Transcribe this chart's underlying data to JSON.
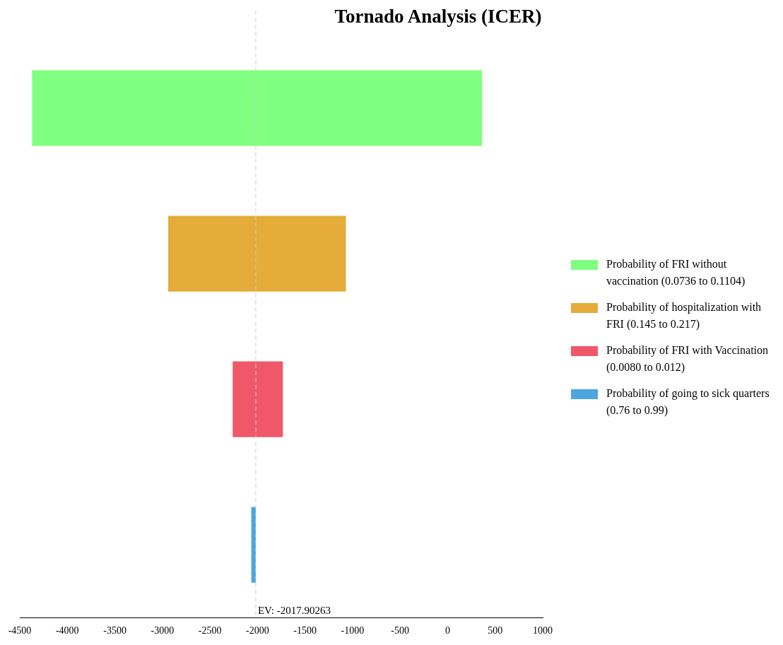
{
  "chart_data": {
    "type": "bar",
    "orientation": "horizontal",
    "title": "Tornado Analysis (ICER)",
    "categories": [
      null,
      null,
      null,
      null
    ],
    "series": [
      {
        "name": "Probability of FRI without vaccination (0.0736 to 0.1104)",
        "color": "#80ff80",
        "values": [
          4733,
          null,
          null,
          null
        ],
        "base": [
          -4371,
          null,
          null,
          null
        ]
      },
      {
        "name": "Probability of hospitalization with FRI (0.145 to 0.217)",
        "color": "#e5ac3a",
        "values": [
          null,
          1869,
          null,
          null
        ],
        "base": [
          null,
          -2939,
          null,
          null
        ]
      },
      {
        "name": "Probability of FRI with Vaccination (0.0080 to 0.012)",
        "color": "#f0586a",
        "values": [
          null,
          null,
          528,
          null
        ],
        "base": [
          null,
          null,
          -2261,
          null
        ]
      },
      {
        "name": "Probability of going to sick quarters (0.76 to 0.99)",
        "color": "#4da6e0",
        "values": [
          null,
          null,
          null,
          47
        ],
        "base": [
          null,
          null,
          null,
          -2065
        ]
      }
    ],
    "xlim": [
      -4500,
      1000
    ],
    "xticks": [
      -4500,
      -4000,
      -3500,
      -3000,
      -2500,
      -2000,
      -1500,
      -1000,
      -500,
      0,
      500,
      1000
    ],
    "ref_lines": [
      {
        "axis": "x",
        "value": -2017.90263,
        "label": "EV: -2017.90263",
        "color": "#cccccc",
        "line_style": "dashed"
      }
    ],
    "grid": false,
    "legend": "right",
    "tick_labels": "x"
  }
}
